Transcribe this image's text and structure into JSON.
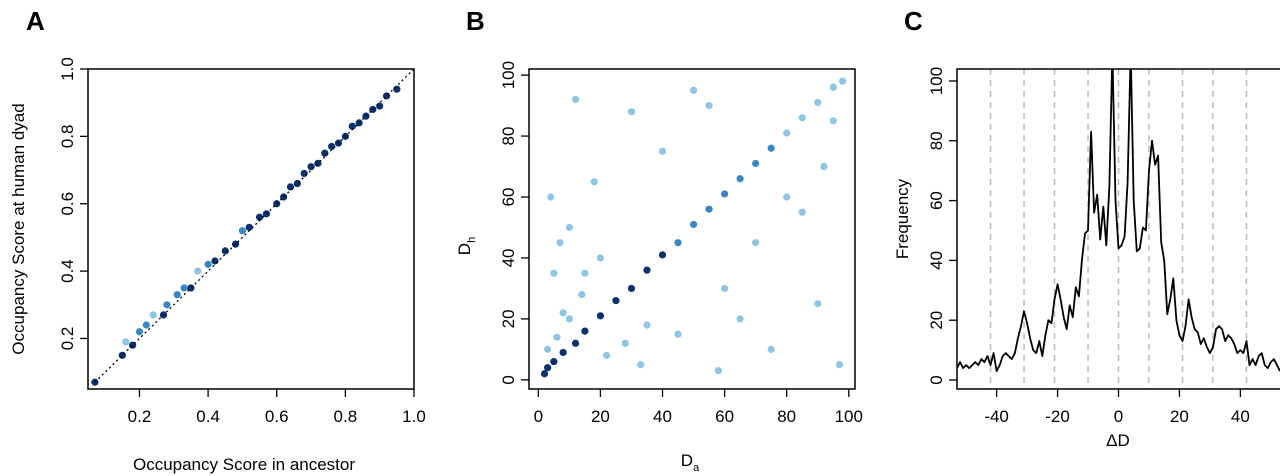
{
  "chart_data": [
    {
      "type": "scatter",
      "panel": "A",
      "xlabel": "Occupancy Score in ancestor",
      "ylabel": "Occupancy Score at human dyad",
      "xlim": [
        0.05,
        1.0
      ],
      "ylim": [
        0.05,
        1.0
      ],
      "xticks": [
        0.2,
        0.4,
        0.6,
        0.8,
        1.0
      ],
      "yticks": [
        0.2,
        0.4,
        0.6,
        0.8,
        1.0
      ],
      "tick_labels_x": [
        "0.2",
        "0.4",
        "0.6",
        "0.8",
        "1.0"
      ],
      "tick_labels_y": [
        "0.2",
        "0.4",
        "0.6",
        "0.8",
        "1.0"
      ],
      "reference_line": "y = x (dotted)",
      "point_color_light": "#8fc4e3",
      "point_color_mid": "#3a86c4",
      "point_color_dark": "#08306b",
      "x": [
        0.07,
        0.15,
        0.16,
        0.18,
        0.2,
        0.22,
        0.24,
        0.27,
        0.28,
        0.31,
        0.33,
        0.35,
        0.37,
        0.4,
        0.42,
        0.45,
        0.48,
        0.5,
        0.52,
        0.55,
        0.57,
        0.6,
        0.62,
        0.64,
        0.66,
        0.68,
        0.7,
        0.72,
        0.74,
        0.76,
        0.78,
        0.8,
        0.82,
        0.84,
        0.86,
        0.88,
        0.9,
        0.92,
        0.95
      ],
      "y": [
        0.07,
        0.15,
        0.19,
        0.18,
        0.22,
        0.24,
        0.27,
        0.27,
        0.3,
        0.33,
        0.35,
        0.35,
        0.4,
        0.42,
        0.43,
        0.46,
        0.48,
        0.52,
        0.53,
        0.56,
        0.57,
        0.6,
        0.62,
        0.65,
        0.66,
        0.69,
        0.71,
        0.72,
        0.75,
        0.77,
        0.78,
        0.8,
        0.83,
        0.84,
        0.86,
        0.88,
        0.89,
        0.92,
        0.94
      ]
    },
    {
      "type": "scatter",
      "panel": "B",
      "xlabel": "D",
      "xlabel_sub": "a",
      "ylabel": "D",
      "ylabel_sub": "h",
      "xlim": [
        -3,
        102
      ],
      "ylim": [
        -3,
        102
      ],
      "xticks": [
        0,
        20,
        40,
        60,
        80,
        100
      ],
      "yticks": [
        0,
        20,
        40,
        60,
        80,
        100
      ],
      "tick_labels_x": [
        "0",
        "20",
        "40",
        "60",
        "80",
        "100"
      ],
      "tick_labels_y": [
        "0",
        "20",
        "40",
        "60",
        "80",
        "100"
      ],
      "point_color_light": "#8fc4e3",
      "point_color_mid": "#3a86c4",
      "point_color_dark": "#08306b",
      "x": [
        2,
        3,
        5,
        8,
        12,
        15,
        20,
        25,
        30,
        35,
        40,
        45,
        50,
        55,
        60,
        65,
        70,
        75,
        80,
        85,
        90,
        95,
        98,
        3,
        6,
        10,
        14,
        5,
        8,
        22,
        28,
        35,
        4,
        18,
        40,
        55,
        70,
        90,
        97,
        12,
        30,
        60,
        85,
        45,
        92,
        20,
        75,
        50,
        65,
        80,
        33,
        10,
        15,
        7,
        95,
        58
      ],
      "y": [
        2,
        4,
        6,
        9,
        12,
        16,
        21,
        26,
        30,
        36,
        41,
        45,
        51,
        56,
        61,
        66,
        71,
        76,
        81,
        86,
        91,
        96,
        98,
        10,
        14,
        20,
        28,
        35,
        22,
        8,
        12,
        18,
        60,
        65,
        75,
        90,
        45,
        25,
        5,
        92,
        88,
        30,
        55,
        15,
        70,
        40,
        10,
        95,
        20,
        60,
        5,
        50,
        35,
        45,
        85,
        3
      ]
    },
    {
      "type": "line",
      "panel": "C",
      "xlabel": "ΔD",
      "ylabel": "Frequency",
      "xlim": [
        -53,
        53
      ],
      "ylim": [
        -3,
        104
      ],
      "xticks": [
        -40,
        -20,
        0,
        20,
        40
      ],
      "yticks": [
        0,
        20,
        40,
        60,
        80,
        100
      ],
      "tick_labels_x": [
        "-40",
        "-20",
        "0",
        "20",
        "40"
      ],
      "tick_labels_y": [
        "0",
        "20",
        "40",
        "60",
        "80",
        "100"
      ],
      "vlines": [
        -42,
        -31,
        -21,
        -10,
        0,
        10,
        21,
        31,
        42
      ],
      "line_color": "#000000",
      "vline_color": "#bbbbbb",
      "x": [
        -53,
        -52,
        -51,
        -50,
        -49,
        -48,
        -47,
        -46,
        -45,
        -44,
        -43,
        -42,
        -41,
        -40,
        -39,
        -38,
        -37,
        -36,
        -35,
        -34,
        -33,
        -32,
        -31,
        -30,
        -29,
        -28,
        -27,
        -26,
        -25,
        -24,
        -23,
        -22,
        -21,
        -20,
        -19,
        -18,
        -17,
        -16,
        -15,
        -14,
        -13,
        -12,
        -11,
        -10,
        -9,
        -8,
        -7,
        -6,
        -5,
        -4,
        -3,
        -2,
        -1,
        0,
        1,
        2,
        3,
        4,
        5,
        6,
        7,
        8,
        9,
        10,
        11,
        12,
        13,
        14,
        15,
        16,
        17,
        18,
        19,
        20,
        21,
        22,
        23,
        24,
        25,
        26,
        27,
        28,
        29,
        30,
        31,
        32,
        33,
        34,
        35,
        36,
        37,
        38,
        39,
        40,
        41,
        42,
        43,
        44,
        45,
        46,
        47,
        48,
        49,
        50,
        51,
        52,
        53
      ],
      "y": [
        4,
        6,
        4,
        5,
        4,
        5,
        6,
        5,
        7,
        6,
        8,
        5,
        9,
        3,
        5,
        8,
        9,
        8,
        7,
        9,
        14,
        18,
        23,
        19,
        14,
        10,
        9,
        13,
        8,
        15,
        20,
        19,
        27,
        32,
        27,
        21,
        17,
        25,
        21,
        31,
        28,
        40,
        49,
        50,
        83,
        56,
        62,
        47,
        58,
        45,
        65,
        110,
        60,
        44,
        45,
        48,
        66,
        110,
        60,
        43,
        44,
        51,
        50,
        70,
        80,
        72,
        75,
        46,
        40,
        22,
        27,
        34,
        20,
        15,
        13,
        18,
        27,
        21,
        17,
        16,
        12,
        14,
        11,
        9,
        11,
        17,
        18,
        17,
        13,
        15,
        14,
        12,
        9,
        10,
        9,
        13,
        5,
        7,
        5,
        8,
        9,
        5,
        4,
        6,
        7,
        5,
        3
      ]
    }
  ]
}
